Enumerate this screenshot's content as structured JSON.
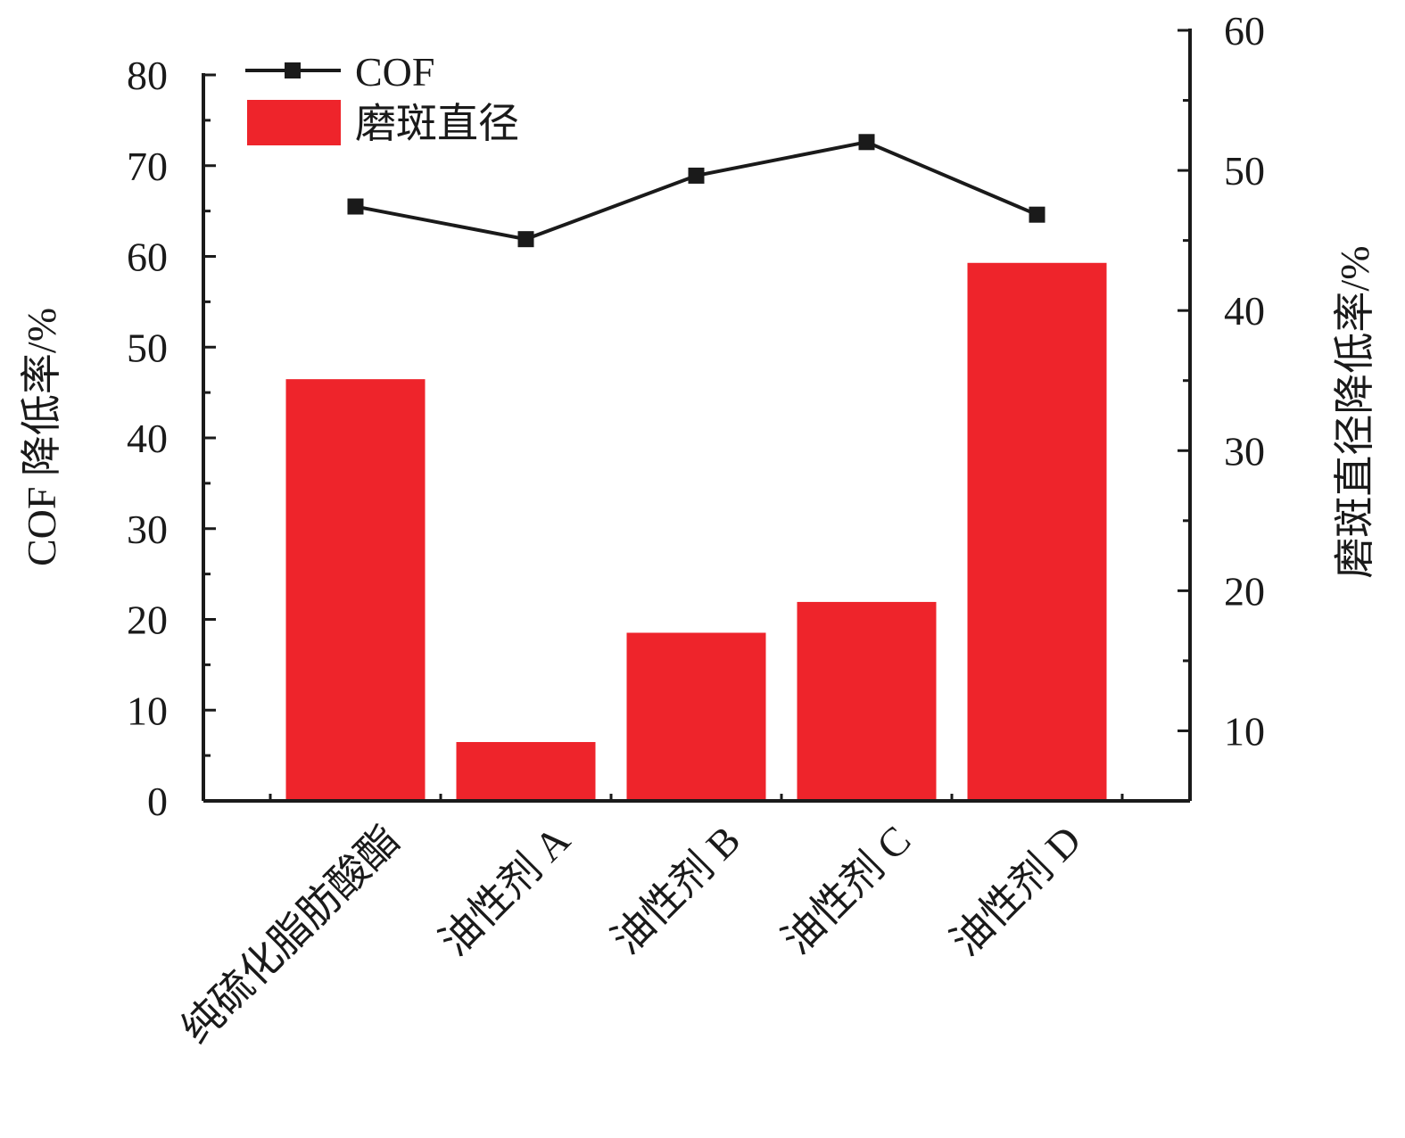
{
  "chart_data": {
    "type": "bar+line",
    "categories": [
      "纯硫化脂肪酸酯",
      "油性剂 A",
      "油性剂 B",
      "油性剂 C",
      "油性剂 D"
    ],
    "series": [
      {
        "name": "磨斑直径",
        "kind": "bar",
        "axis": "right",
        "color": "#ee242b",
        "values": [
          35.1,
          9.2,
          17.0,
          19.2,
          43.4
        ]
      },
      {
        "name": "COF",
        "kind": "line",
        "axis": "left",
        "color": "#1a1a1a",
        "marker": "square",
        "values": [
          65.5,
          61.9,
          68.9,
          72.6,
          64.6
        ]
      }
    ],
    "left_axis": {
      "label": "COF 降低率/%",
      "ylim": [
        0,
        80
      ],
      "ticks": [
        0,
        10,
        20,
        30,
        40,
        50,
        60,
        70,
        80
      ]
    },
    "right_axis": {
      "label": "磨斑直径降低率/%",
      "ylim": [
        5,
        60
      ],
      "ticks": [
        10,
        20,
        30,
        40,
        50,
        60
      ]
    },
    "legend": {
      "position": "top-left",
      "entries": [
        "COF",
        "磨斑直径"
      ]
    },
    "grid": false
  }
}
